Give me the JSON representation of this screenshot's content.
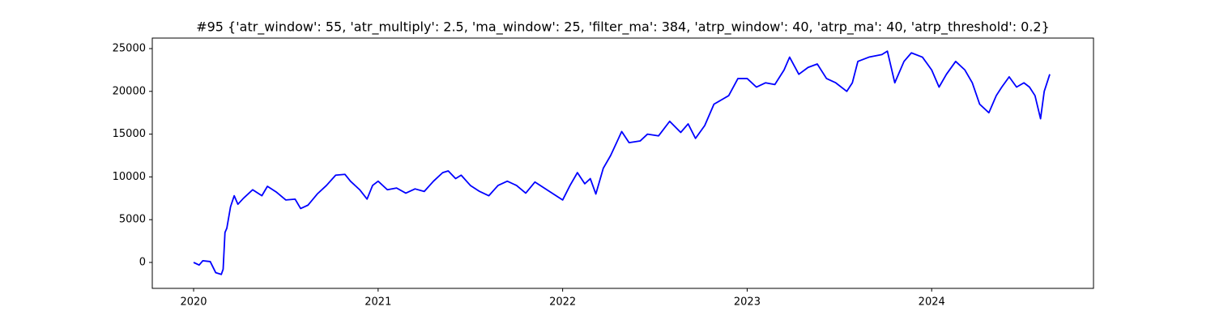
{
  "chart_data": {
    "type": "line",
    "title": "#95 {'atr_window': 55, 'atr_multiply': 2.5, 'ma_window': 25, 'filter_ma': 384, 'atrp_window': 40, 'atrp_ma': 40, 'atrp_threshold': 0.2}",
    "x": [
      2020.0,
      2020.03,
      2020.05,
      2020.09,
      2020.12,
      2020.15,
      2020.16,
      2020.17,
      2020.18,
      2020.2,
      2020.22,
      2020.24,
      2020.27,
      2020.32,
      2020.37,
      2020.4,
      2020.45,
      2020.5,
      2020.55,
      2020.58,
      2020.62,
      2020.67,
      2020.72,
      2020.77,
      2020.82,
      2020.85,
      2020.9,
      2020.94,
      2020.97,
      2021.0,
      2021.05,
      2021.1,
      2021.15,
      2021.2,
      2021.25,
      2021.3,
      2021.35,
      2021.38,
      2021.42,
      2021.45,
      2021.5,
      2021.55,
      2021.6,
      2021.65,
      2021.7,
      2021.75,
      2021.8,
      2021.85,
      2021.9,
      2021.95,
      2022.0,
      2022.04,
      2022.08,
      2022.12,
      2022.15,
      2022.18,
      2022.22,
      2022.26,
      2022.32,
      2022.36,
      2022.42,
      2022.46,
      2022.52,
      2022.58,
      2022.64,
      2022.68,
      2022.72,
      2022.77,
      2022.82,
      2022.86,
      2022.9,
      2022.95,
      2023.0,
      2023.05,
      2023.1,
      2023.15,
      2023.2,
      2023.23,
      2023.28,
      2023.33,
      2023.38,
      2023.43,
      2023.48,
      2023.54,
      2023.57,
      2023.6,
      2023.66,
      2023.73,
      2023.76,
      2023.8,
      2023.85,
      2023.89,
      2023.95,
      2024.0,
      2024.04,
      2024.08,
      2024.13,
      2024.18,
      2024.22,
      2024.26,
      2024.31,
      2024.35,
      2024.38,
      2024.42,
      2024.46,
      2024.5,
      2024.53,
      2024.56,
      2024.59,
      2024.61,
      2024.64
    ],
    "values": [
      0,
      -300,
      200,
      100,
      -1200,
      -1400,
      -800,
      3500,
      4000,
      6500,
      7800,
      6800,
      7500,
      8500,
      7800,
      8900,
      8200,
      7300,
      7400,
      6300,
      6700,
      8000,
      9000,
      10200,
      10300,
      9500,
      8500,
      7400,
      9000,
      9500,
      8500,
      8700,
      8100,
      8600,
      8300,
      9500,
      10500,
      10700,
      9800,
      10200,
      9000,
      8300,
      7800,
      9000,
      9500,
      9000,
      8100,
      9400,
      8700,
      8000,
      7300,
      9000,
      10500,
      9200,
      9800,
      8000,
      11000,
      12500,
      15300,
      14000,
      14200,
      15000,
      14800,
      16500,
      15200,
      16200,
      14500,
      16000,
      18500,
      19000,
      19500,
      21500,
      21500,
      20500,
      21000,
      20800,
      22500,
      24000,
      22000,
      22800,
      23200,
      21500,
      21000,
      20000,
      21000,
      23500,
      24000,
      24300,
      24700,
      21000,
      23500,
      24500,
      24000,
      22500,
      20500,
      22000,
      23500,
      22500,
      21000,
      18500,
      17500,
      19500,
      20500,
      21700,
      20500,
      21000,
      20500,
      19500,
      16800,
      20000,
      22000
    ],
    "color": "#0000ff",
    "xlim": [
      2019.776,
      2024.877
    ],
    "xticks": [
      2020,
      2021,
      2022,
      2023,
      2024
    ],
    "ylim": [
      -3030,
      26230
    ],
    "yticks": [
      0,
      5000,
      10000,
      15000,
      20000,
      25000
    ]
  }
}
